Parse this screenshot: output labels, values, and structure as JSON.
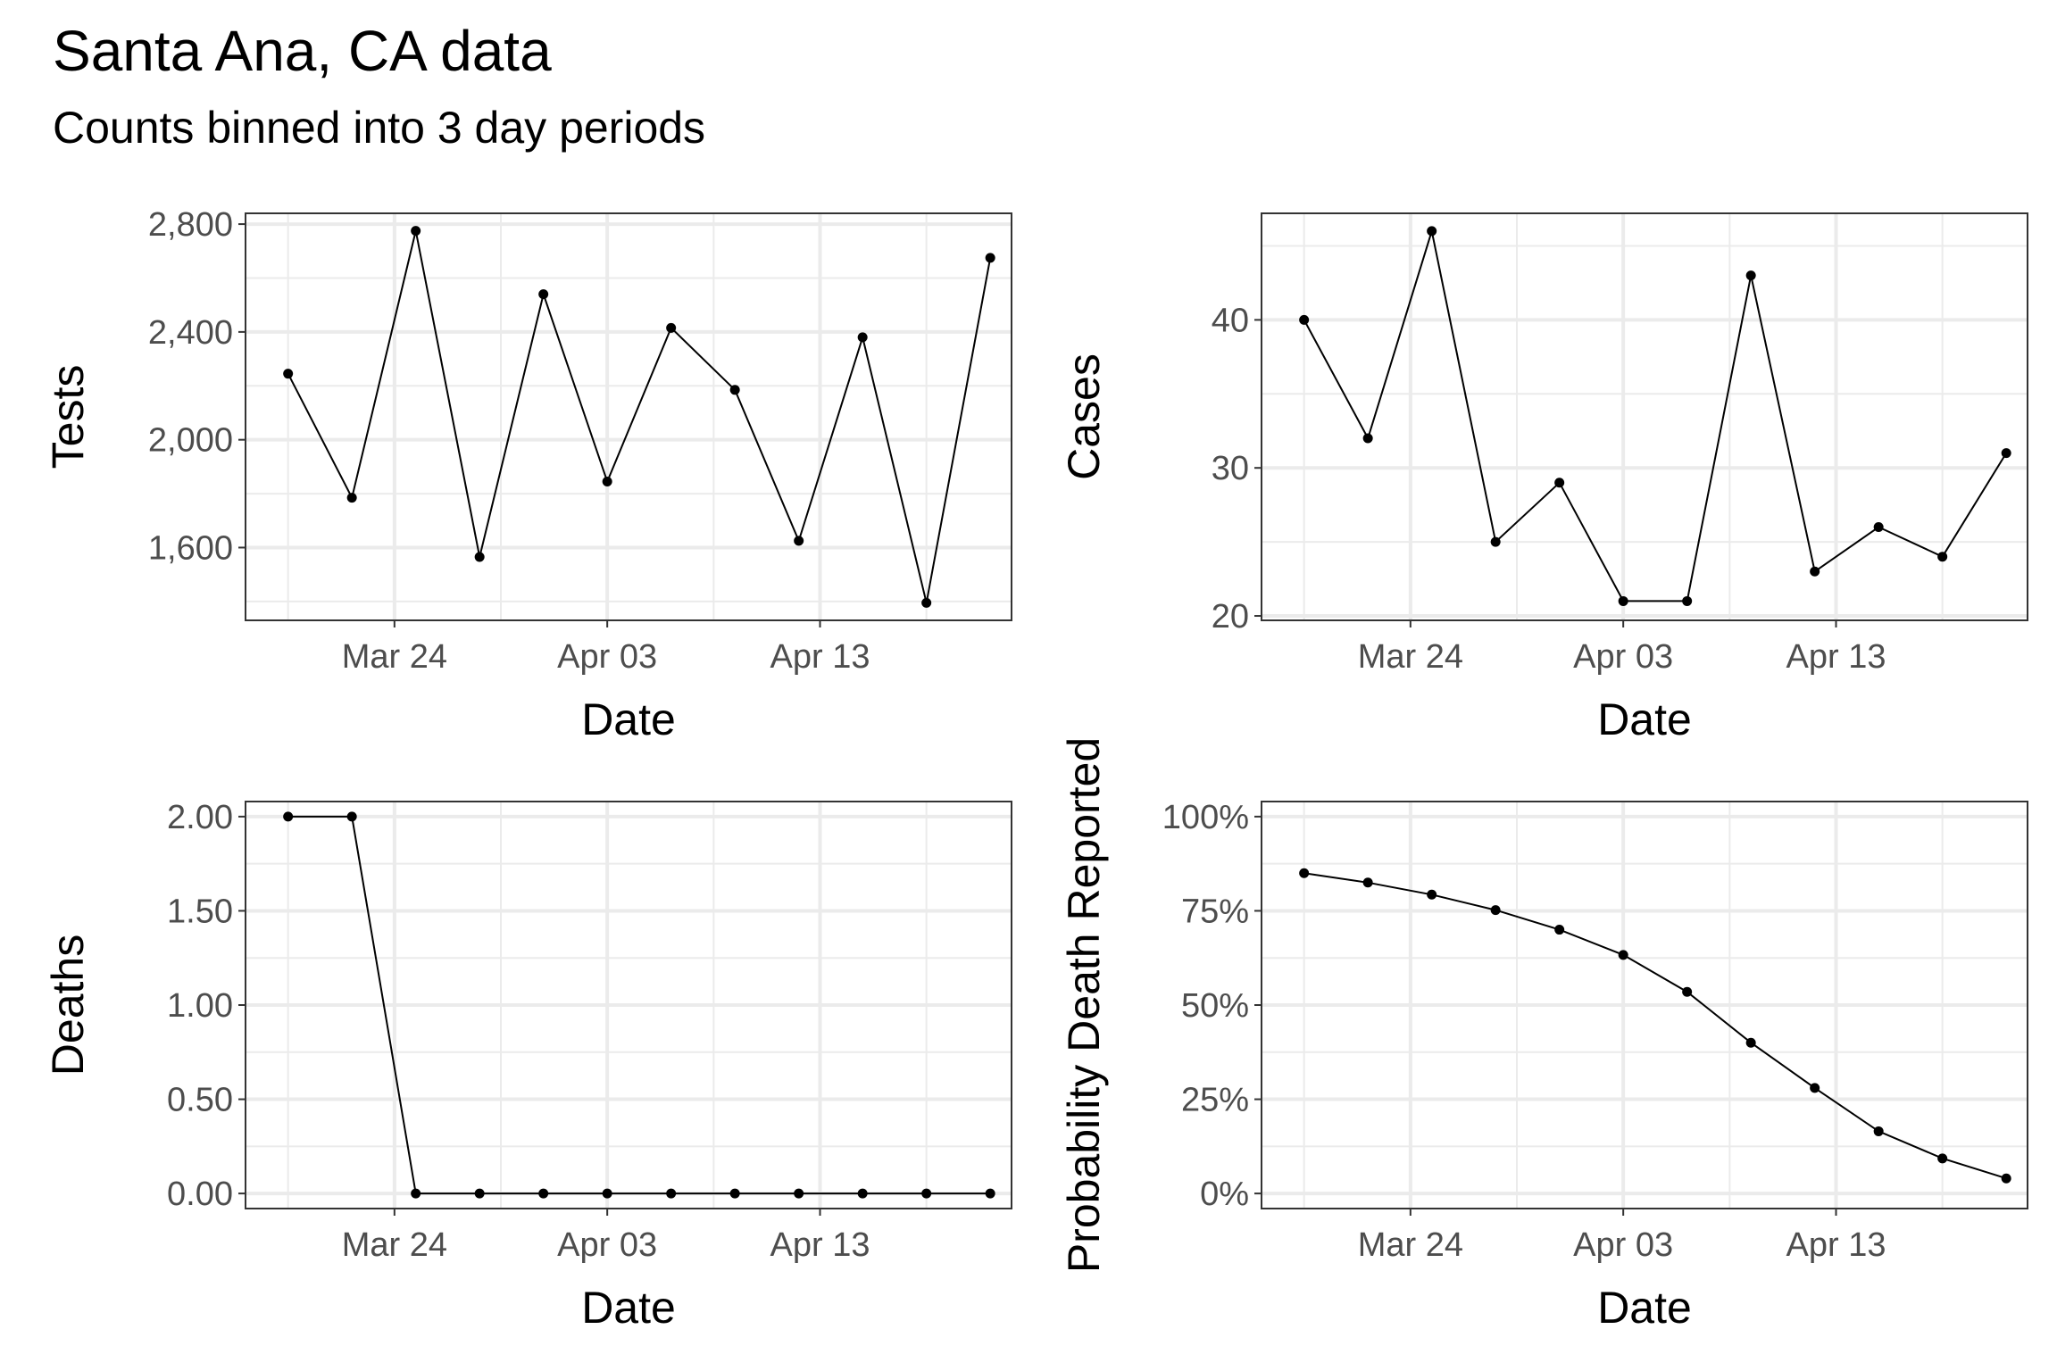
{
  "title": "Santa Ana, CA data",
  "subtitle": "Counts binned into 3 day periods",
  "chart_data": [
    {
      "type": "line",
      "xlabel": "Date",
      "ylabel": "Tests",
      "x": [
        "2020-03-19",
        "2020-03-22",
        "2020-03-25",
        "2020-03-28",
        "2020-03-31",
        "2020-04-03",
        "2020-04-06",
        "2020-04-09",
        "2020-04-12",
        "2020-04-15",
        "2020-04-18",
        "2020-04-21"
      ],
      "values": [
        2245,
        1785,
        2775,
        1565,
        2540,
        1845,
        2415,
        2185,
        1625,
        2380,
        1395,
        2675
      ],
      "xlim": [
        "2020-03-17",
        "2020-04-22"
      ],
      "ylim": [
        1330,
        2840
      ],
      "yticks": [
        1600,
        2000,
        2400,
        2800
      ],
      "ytick_labels": [
        "1,600",
        "2,000",
        "2,400",
        "2,800"
      ],
      "xtick_labels": [
        "Mar 24",
        "Apr 03",
        "Apr 13"
      ],
      "grid": true
    },
    {
      "type": "line",
      "xlabel": "Date",
      "ylabel": "Cases",
      "x": [
        "2020-03-19",
        "2020-03-22",
        "2020-03-25",
        "2020-03-28",
        "2020-03-31",
        "2020-04-03",
        "2020-04-06",
        "2020-04-09",
        "2020-04-12",
        "2020-04-15",
        "2020-04-18",
        "2020-04-21"
      ],
      "values": [
        40,
        32,
        46,
        25,
        29,
        21,
        21,
        43,
        23,
        26,
        24,
        31
      ],
      "xlim": [
        "2020-03-17",
        "2020-04-22"
      ],
      "ylim": [
        19.7,
        47.2
      ],
      "yticks": [
        20,
        30,
        40
      ],
      "ytick_labels": [
        "20",
        "30",
        "40"
      ],
      "xtick_labels": [
        "Mar 24",
        "Apr 03",
        "Apr 13"
      ],
      "grid": true
    },
    {
      "type": "line",
      "xlabel": "Date",
      "ylabel": "Deaths",
      "x": [
        "2020-03-19",
        "2020-03-22",
        "2020-03-25",
        "2020-03-28",
        "2020-03-31",
        "2020-04-03",
        "2020-04-06",
        "2020-04-09",
        "2020-04-12",
        "2020-04-15",
        "2020-04-18",
        "2020-04-21"
      ],
      "values": [
        2,
        2,
        0,
        0,
        0,
        0,
        0,
        0,
        0,
        0,
        0,
        0
      ],
      "xlim": [
        "2020-03-17",
        "2020-04-22"
      ],
      "ylim": [
        -0.08,
        2.08
      ],
      "yticks": [
        0,
        0.5,
        1,
        1.5,
        2
      ],
      "ytick_labels": [
        "0.00",
        "0.50",
        "1.00",
        "1.50",
        "2.00"
      ],
      "xtick_labels": [
        "Mar 24",
        "Apr 03",
        "Apr 13"
      ],
      "grid": true
    },
    {
      "type": "line",
      "xlabel": "Date",
      "ylabel": "Probability Death Reported",
      "x": [
        "2020-03-19",
        "2020-03-22",
        "2020-03-25",
        "2020-03-28",
        "2020-03-31",
        "2020-04-03",
        "2020-04-06",
        "2020-04-09",
        "2020-04-12",
        "2020-04-15",
        "2020-04-18",
        "2020-04-21"
      ],
      "values": [
        85,
        82.5,
        79.3,
        75.2,
        70,
        63.3,
        53.5,
        40,
        28,
        16.5,
        9.3,
        4
      ],
      "xlim": [
        "2020-03-17",
        "2020-04-22"
      ],
      "ylim": [
        -4,
        104
      ],
      "yticks": [
        0,
        25,
        50,
        75,
        100
      ],
      "ytick_labels": [
        "0%",
        "25%",
        "50%",
        "75%",
        "100%"
      ],
      "xtick_labels": [
        "Mar 24",
        "Apr 03",
        "Apr 13"
      ],
      "grid": true
    }
  ]
}
